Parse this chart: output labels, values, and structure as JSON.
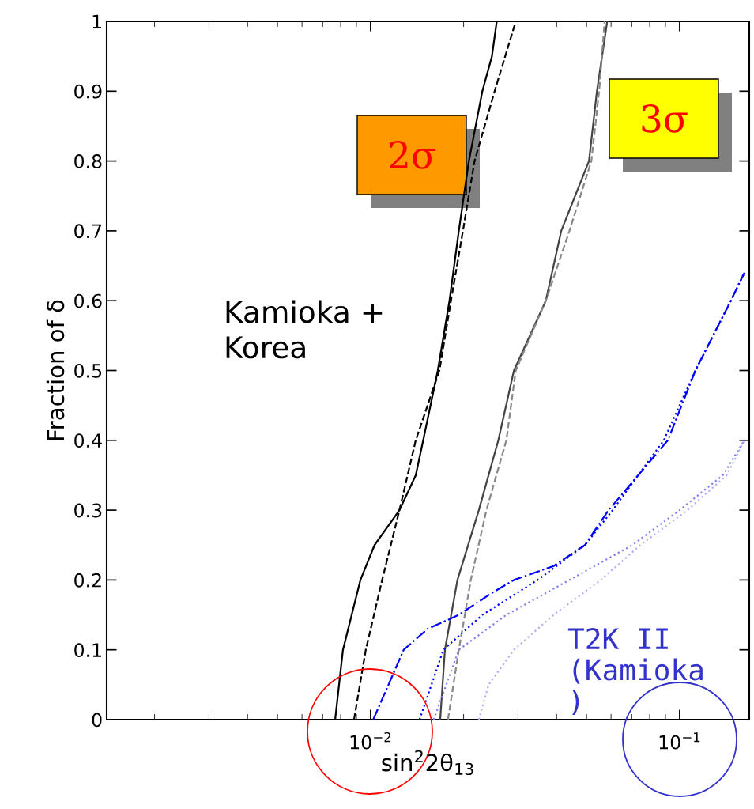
{
  "chart_data": {
    "type": "line",
    "xlabel": "sin$^{2}$2θ$_{13}$",
    "ylabel": "Fraction of δ",
    "log": "x",
    "grid": false,
    "legend": false,
    "marker": "none",
    "xlim": [
      0.0014,
      0.168
    ],
    "xticks": [
      {
        "value": 0.01,
        "label": "10$^{−2}$"
      },
      {
        "value": 0.1,
        "label": "10$^{−1}$"
      }
    ],
    "ylim": [
      0,
      1
    ],
    "yticks": [
      0,
      0.1,
      0.2,
      0.3,
      0.4,
      0.5,
      0.6,
      0.7,
      0.8,
      0.9,
      1
    ],
    "annotations": [
      "2σ",
      "3σ",
      "Kamioka +\nKorea",
      "T2K II\n(Kamioka\n)"
    ],
    "series": [
      {
        "color": "#000000",
        "line_style": "solid",
        "x": [
          0.00768,
          0.00814,
          0.00927,
          0.0103,
          0.0124,
          0.014,
          0.0148,
          0.0165,
          0.018,
          0.0193,
          0.0208,
          0.023,
          0.0247,
          0.0256
        ],
        "values": [
          0,
          0.1,
          0.2,
          0.25,
          0.3,
          0.35,
          0.4,
          0.5,
          0.6,
          0.7,
          0.8,
          0.9,
          0.95,
          1.0
        ]
      },
      {
        "color": "#000000",
        "line_style": "dashed",
        "x": [
          0.00884,
          0.00965,
          0.0109,
          0.0124,
          0.014,
          0.0167,
          0.0182,
          0.0199,
          0.0217,
          0.0252,
          0.0295
        ],
        "values": [
          0,
          0.1,
          0.2,
          0.3,
          0.4,
          0.5,
          0.6,
          0.7,
          0.8,
          0.9,
          1.0
        ]
      },
      {
        "color": "#444444",
        "line_style": "solid",
        "x": [
          0.0168,
          0.0174,
          0.0191,
          0.0224,
          0.0259,
          0.0291,
          0.0369,
          0.0414,
          0.0509,
          0.054,
          0.0583
        ],
        "values": [
          0,
          0.1,
          0.2,
          0.3,
          0.4,
          0.5,
          0.6,
          0.7,
          0.8,
          0.9,
          1.0
        ]
      },
      {
        "color": "#888888",
        "line_style": "dashed",
        "x": [
          0.0178,
          0.0193,
          0.0211,
          0.0237,
          0.0275,
          0.0295,
          0.0369,
          0.044,
          0.0518,
          0.0549,
          0.0572
        ],
        "values": [
          0,
          0.1,
          0.2,
          0.3,
          0.4,
          0.5,
          0.6,
          0.7,
          0.8,
          0.9,
          1.0
        ]
      },
      {
        "color": "#0000ff",
        "line_style": "dashdot",
        "x": [
          0.0102,
          0.0128,
          0.0153,
          0.0193,
          0.0244,
          0.0291,
          0.0391,
          0.0494,
          0.0589,
          0.0916,
          0.1125,
          0.1465,
          0.162
        ],
        "values": [
          0,
          0.1,
          0.13,
          0.15,
          0.18,
          0.2,
          0.22,
          0.25,
          0.3,
          0.4,
          0.5,
          0.6,
          0.64
        ]
      },
      {
        "color": "#0000ff",
        "line_style": "dotted",
        "x": [
          0.0144,
          0.0172,
          0.023,
          0.0347,
          0.0494,
          0.0607,
          0.0889,
          0.1125,
          0.1465,
          0.162
        ],
        "values": [
          0,
          0.1,
          0.15,
          0.2,
          0.25,
          0.3,
          0.4,
          0.5,
          0.6,
          0.64
        ]
      },
      {
        "color": "#8080f0",
        "line_style": "dotted",
        "x": [
          0.016,
          0.0193,
          0.0275,
          0.044,
          0.0703,
          0.1,
          0.138,
          0.162
        ],
        "values": [
          0,
          0.1,
          0.15,
          0.2,
          0.25,
          0.3,
          0.35,
          0.4
        ]
      },
      {
        "color": "#b0b0ff",
        "line_style": "dotted",
        "x": [
          0.0224,
          0.0241,
          0.0291,
          0.0391,
          0.0556,
          0.0746,
          0.106,
          0.142,
          0.162
        ],
        "values": [
          0,
          0.05,
          0.1,
          0.15,
          0.2,
          0.25,
          0.3,
          0.35,
          0.4
        ]
      }
    ]
  }
}
